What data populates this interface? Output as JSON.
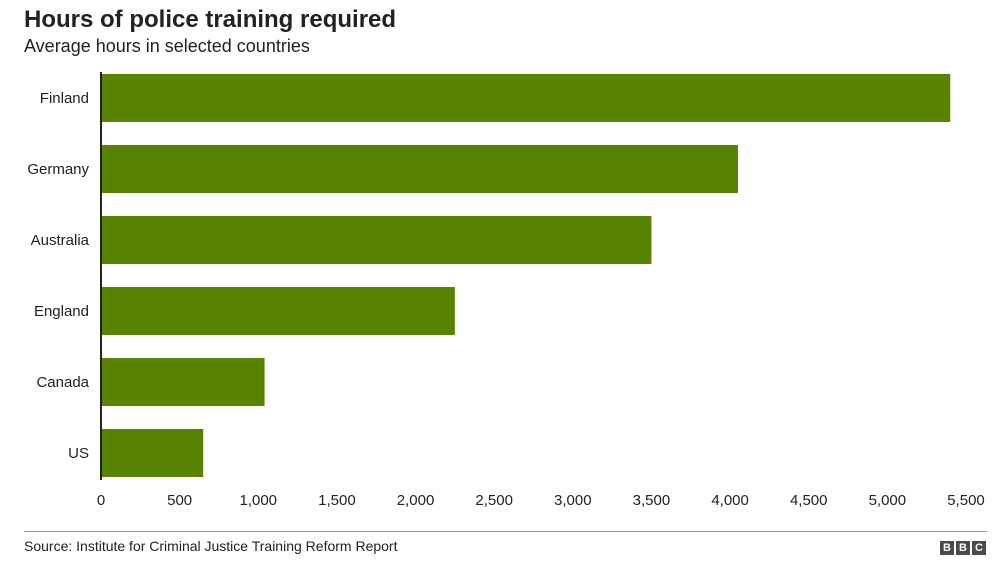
{
  "chart_data": {
    "type": "bar",
    "orientation": "horizontal",
    "title": "Hours of police training required",
    "subtitle": "Average hours in selected countries",
    "categories": [
      "Finland",
      "Germany",
      "Australia",
      "England",
      "Canada",
      "US"
    ],
    "values": [
      5400,
      4050,
      3500,
      2250,
      1040,
      650
    ],
    "xlim": [
      0,
      5500
    ],
    "xticks": [
      "0",
      "500",
      "1,000",
      "1,500",
      "2,000",
      "2,500",
      "3,000",
      "3,500",
      "4,000",
      "4,500",
      "5,000",
      "5,500"
    ],
    "xlabel": "",
    "ylabel": "",
    "grid": false,
    "bar_color": "#588300"
  },
  "source": "Source: Institute for Criminal Justice Training Reform Report",
  "logo": [
    "B",
    "B",
    "C"
  ]
}
